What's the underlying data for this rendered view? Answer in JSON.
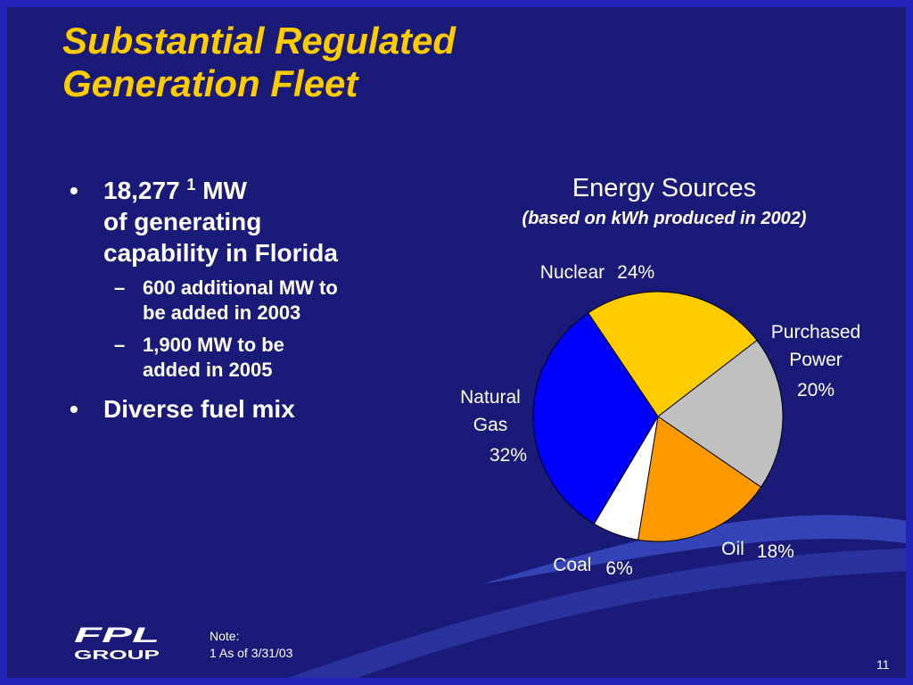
{
  "slide": {
    "title_line1": "Substantial Regulated",
    "title_line2": "Generation Fleet",
    "page_number": "11"
  },
  "bullets": {
    "item1_prefix": "18,277",
    "item1_sup": "1",
    "item1_suffix": "MW",
    "item1_line2": "of generating",
    "item1_line3": "capability in Florida",
    "sub1_line1": "600 additional MW to",
    "sub1_line2": "be added in 2003",
    "sub2_line1": "1,900 MW to be",
    "sub2_line2": "added in 2005",
    "item2": "Diverse fuel mix",
    "bullet_symbol": "•",
    "dash_symbol": "–"
  },
  "chart_data": {
    "type": "pie",
    "title": "Energy Sources",
    "subtitle": "(based on kWh produced in 2002)",
    "slices": [
      {
        "label": "Nuclear",
        "label_lines": [
          "Nuclear"
        ],
        "value": 24,
        "value_label": "24%",
        "color": "#ffcc00"
      },
      {
        "label": "Purchased Power",
        "label_lines": [
          "Purchased",
          "Power"
        ],
        "value": 20,
        "value_label": "20%",
        "color": "#c0c0c0"
      },
      {
        "label": "Oil",
        "label_lines": [
          "Oil"
        ],
        "value": 18,
        "value_label": "18%",
        "color": "#ff9900"
      },
      {
        "label": "Coal",
        "label_lines": [
          "Coal"
        ],
        "value": 6,
        "value_label": "6%",
        "color": "#ffffff"
      },
      {
        "label": "Natural Gas",
        "label_lines": [
          "Natural",
          "Gas"
        ],
        "value": 32,
        "value_label": "32%",
        "color": "#0000ff"
      }
    ]
  },
  "footer": {
    "logo_top": "FPL",
    "logo_bottom": "GROUP",
    "note_label": "Note:",
    "note_text": "1 As of 3/31/03"
  },
  "colors": {
    "background": "#1a1a78",
    "border": "#2424b8",
    "title": "#ffcc00",
    "text": "#ffffff"
  }
}
